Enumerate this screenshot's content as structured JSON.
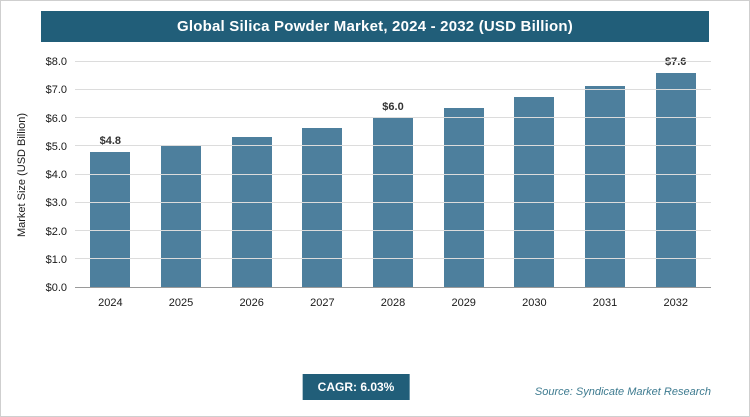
{
  "chart_data": {
    "type": "bar",
    "title": "Global Silica Powder Market, 2024 - 2032 (USD Billion)",
    "categories": [
      "2024",
      "2025",
      "2026",
      "2027",
      "2028",
      "2029",
      "2030",
      "2031",
      "2032"
    ],
    "values": [
      4.8,
      5.05,
      5.35,
      5.65,
      6.0,
      6.35,
      6.75,
      7.15,
      7.6
    ],
    "bar_labels": [
      "$4.8",
      "",
      "",
      "",
      "$6.0",
      "",
      "",
      "",
      "$7.6"
    ],
    "xlabel": "",
    "ylabel": "Market Size (USD Billion)",
    "ylim": [
      0,
      8
    ],
    "ytick_labels": [
      "$0.0",
      "$1.0",
      "$2.0",
      "$3.0",
      "$4.0",
      "$5.0",
      "$6.0",
      "$7.0",
      "$8.0"
    ],
    "grid": "horizontal",
    "legend": "none",
    "bar_color": "#4d7f9d",
    "title_bar_color": "#215e79"
  },
  "footer": {
    "cagr": "CAGR: 6.03%",
    "source": "Source: Syndicate Market Research"
  }
}
